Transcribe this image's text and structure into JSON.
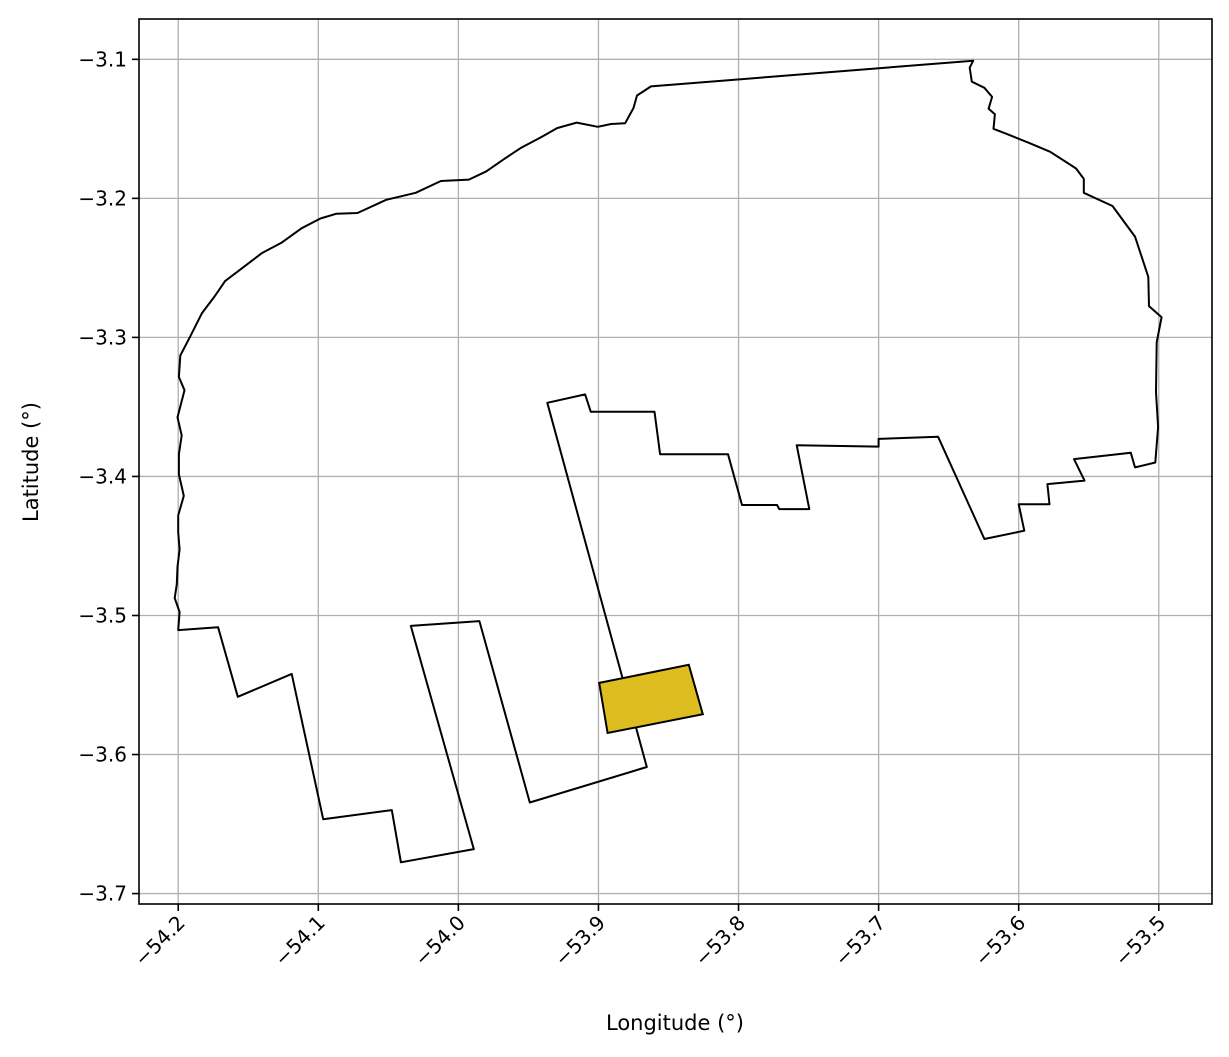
{
  "chart_data": {
    "type": "map",
    "xlabel": "Longitude (°)",
    "ylabel": "Latitude (°)",
    "xlim": [
      -54.228,
      -53.462
    ],
    "ylim": [
      -3.7075,
      -3.071
    ],
    "grid": true,
    "x_ticks": [
      -54.2,
      -54.1,
      -54.0,
      -53.9,
      -53.8,
      -53.7,
      -53.6,
      -53.5
    ],
    "x_tick_labels": [
      "−54.2",
      "−54.1",
      "−54.0",
      "−53.9",
      "−53.8",
      "−53.7",
      "−53.6",
      "−53.5"
    ],
    "y_ticks": [
      -3.1,
      -3.2,
      -3.3,
      -3.4,
      -3.5,
      -3.6,
      -3.7
    ],
    "y_tick_labels": [
      "−3.1",
      "−3.2",
      "−3.3",
      "−3.4",
      "−3.5",
      "−3.6",
      "−3.7"
    ],
    "outer_boundary": {
      "fill": "none",
      "stroke": "#000000",
      "coords": [
        [
          -54.2,
          -3.5105
        ],
        [
          -54.1715,
          -3.5085
        ],
        [
          -54.1575,
          -3.5585
        ],
        [
          -54.119,
          -3.542
        ],
        [
          -54.0965,
          -3.6465
        ],
        [
          -54.0475,
          -3.64
        ],
        [
          -54.041,
          -3.6775
        ],
        [
          -53.989,
          -3.668
        ],
        [
          -54.034,
          -3.5075
        ],
        [
          -53.985,
          -3.504
        ],
        [
          -53.949,
          -3.6345
        ],
        [
          -53.8655,
          -3.609
        ],
        [
          -53.9365,
          -3.347
        ],
        [
          -53.9095,
          -3.341
        ],
        [
          -53.9055,
          -3.3535
        ],
        [
          -53.86,
          -3.3535
        ],
        [
          -53.856,
          -3.384
        ],
        [
          -53.8075,
          -3.384
        ],
        [
          -53.7975,
          -3.4205
        ],
        [
          -53.7725,
          -3.4205
        ],
        [
          -53.771,
          -3.4235
        ],
        [
          -53.7495,
          -3.4235
        ],
        [
          -53.7585,
          -3.3775
        ],
        [
          -53.7,
          -3.3785
        ],
        [
          -53.7,
          -3.373
        ],
        [
          -53.6575,
          -3.3715
        ],
        [
          -53.6245,
          -3.445
        ],
        [
          -53.596,
          -3.439
        ],
        [
          -53.6,
          -3.42
        ],
        [
          -53.578,
          -3.42
        ],
        [
          -53.5795,
          -3.4055
        ],
        [
          -53.553,
          -3.403
        ],
        [
          -53.5605,
          -3.3875
        ],
        [
          -53.52,
          -3.383
        ],
        [
          -53.517,
          -3.3935
        ],
        [
          -53.5025,
          -3.39
        ],
        [
          -53.5005,
          -3.3645
        ],
        [
          -53.502,
          -3.3395
        ],
        [
          -53.5015,
          -3.3035
        ],
        [
          -53.498,
          -3.2855
        ],
        [
          -53.507,
          -3.2775
        ],
        [
          -53.5075,
          -3.2565
        ],
        [
          -53.517,
          -3.2275
        ],
        [
          -53.533,
          -3.2055
        ],
        [
          -53.5535,
          -3.196
        ],
        [
          -53.5535,
          -3.186
        ],
        [
          -53.559,
          -3.1785
        ],
        [
          -53.5775,
          -3.1665
        ],
        [
          -53.593,
          -3.16
        ],
        [
          -53.6065,
          -3.1545
        ],
        [
          -53.618,
          -3.15
        ],
        [
          -53.617,
          -3.1395
        ],
        [
          -53.6215,
          -3.1355
        ],
        [
          -53.619,
          -3.127
        ],
        [
          -53.6245,
          -3.1205
        ],
        [
          -53.6335,
          -3.116
        ],
        [
          -53.635,
          -3.106
        ],
        [
          -53.6325,
          -3.101
        ],
        [
          -53.8625,
          -3.1195
        ],
        [
          -53.8725,
          -3.126
        ],
        [
          -53.875,
          -3.135
        ],
        [
          -53.881,
          -3.146
        ],
        [
          -53.891,
          -3.1465
        ],
        [
          -53.9005,
          -3.1485
        ],
        [
          -53.9155,
          -3.1455
        ],
        [
          -53.9295,
          -3.1495
        ],
        [
          -53.941,
          -3.156
        ],
        [
          -53.955,
          -3.1635
        ],
        [
          -53.967,
          -3.1715
        ],
        [
          -53.98,
          -3.1805
        ],
        [
          -53.9925,
          -3.1865
        ],
        [
          -54.0125,
          -3.1875
        ],
        [
          -54.0305,
          -3.196
        ],
        [
          -54.0515,
          -3.201
        ],
        [
          -54.072,
          -3.2105
        ],
        [
          -54.087,
          -3.211
        ],
        [
          -54.0985,
          -3.2145
        ],
        [
          -54.112,
          -3.2215
        ],
        [
          -54.1265,
          -3.232
        ],
        [
          -54.1405,
          -3.2395
        ],
        [
          -54.1535,
          -3.2495
        ],
        [
          -54.1665,
          -3.2595
        ],
        [
          -54.174,
          -3.2705
        ],
        [
          -54.183,
          -3.2825
        ],
        [
          -54.1915,
          -3.2995
        ],
        [
          -54.1985,
          -3.313
        ],
        [
          -54.1995,
          -3.3285
        ],
        [
          -54.1955,
          -3.338
        ],
        [
          -54.2005,
          -3.3575
        ],
        [
          -54.1975,
          -3.3705
        ],
        [
          -54.1995,
          -3.384
        ],
        [
          -54.1995,
          -3.3985
        ],
        [
          -54.196,
          -3.414
        ],
        [
          -54.2,
          -3.428
        ],
        [
          -54.2,
          -3.44
        ],
        [
          -54.199,
          -3.4525
        ],
        [
          -54.2005,
          -3.465
        ],
        [
          -54.201,
          -3.4775
        ],
        [
          -54.2025,
          -3.4875
        ],
        [
          -54.199,
          -3.4975
        ],
        [
          -54.2,
          -3.5105
        ]
      ]
    },
    "highlight_polygon": {
      "fill": "#ddbd20",
      "stroke": "#000000",
      "coords": [
        [
          -53.8995,
          -3.5485
        ],
        [
          -53.8355,
          -3.5355
        ],
        [
          -53.8255,
          -3.571
        ],
        [
          -53.8935,
          -3.5845
        ],
        [
          -53.8995,
          -3.5485
        ]
      ]
    }
  }
}
